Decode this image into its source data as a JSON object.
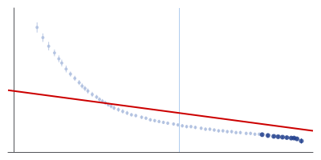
{
  "chart_data": {
    "type": "scatter",
    "xlim": [
      -0.02,
      1.03
    ],
    "ylim": [
      0.95,
      2.65
    ],
    "tick_labels": false,
    "grid": false,
    "vertical_line": {
      "x": 0.575,
      "color": "#b0ccee"
    },
    "series": [
      {
        "type": "scatter",
        "color": "#aabbdd",
        "marker": "circle",
        "x": [
          0.08,
          0.1,
          0.12,
          0.14,
          0.155,
          0.165,
          0.18,
          0.195,
          0.21,
          0.225,
          0.235,
          0.245,
          0.255,
          0.27,
          0.285,
          0.295,
          0.305,
          0.315,
          0.325,
          0.335,
          0.345,
          0.36,
          0.375,
          0.39,
          0.405,
          0.42,
          0.44,
          0.455,
          0.47,
          0.485,
          0.5,
          0.515,
          0.53,
          0.55,
          0.565,
          0.58,
          0.595,
          0.61,
          0.625,
          0.645,
          0.66,
          0.675,
          0.69,
          0.705,
          0.72,
          0.735,
          0.75,
          0.765,
          0.78,
          0.8,
          0.815,
          0.83,
          0.845
        ],
        "values": [
          2.42,
          2.3,
          2.2,
          2.12,
          2.05,
          2.0,
          1.93,
          1.87,
          1.82,
          1.77,
          1.73,
          1.7,
          1.67,
          1.63,
          1.6,
          1.57,
          1.55,
          1.53,
          1.51,
          1.49,
          1.47,
          1.45,
          1.43,
          1.41,
          1.39,
          1.38,
          1.36,
          1.35,
          1.33,
          1.32,
          1.31,
          1.3,
          1.29,
          1.28,
          1.27,
          1.26,
          1.25,
          1.25,
          1.24,
          1.23,
          1.22,
          1.22,
          1.21,
          1.2,
          1.2,
          1.19,
          1.19,
          1.18,
          1.18,
          1.17,
          1.17,
          1.16,
          1.16
        ],
        "yerr": [
          0.06,
          0.05,
          0.05,
          0.04,
          0.04,
          0.04,
          0.04,
          0.03,
          0.03,
          0.03,
          0.03,
          0.03,
          0.03,
          0.03,
          0.025,
          0.025,
          0.025,
          0.025,
          0.025,
          0.025,
          0.025,
          0.025,
          0.025,
          0.025,
          0.02,
          0.02,
          0.02,
          0.02,
          0.02,
          0.02,
          0.02,
          0.02,
          0.02,
          0.02,
          0.02,
          0.02,
          0.02,
          0.02,
          0.02,
          0.02,
          0.02,
          0.02,
          0.02,
          0.02,
          0.02,
          0.02,
          0.02,
          0.02,
          0.02,
          0.02,
          0.02,
          0.02,
          0.02
        ]
      },
      {
        "type": "scatter",
        "color": "#1a3a8a",
        "marker": "circle",
        "x": [
          0.855,
          0.875,
          0.895,
          0.91,
          0.925,
          0.94,
          0.955,
          0.965,
          0.975,
          0.99
        ],
        "values": [
          1.155,
          1.145,
          1.135,
          1.13,
          1.125,
          1.12,
          1.115,
          1.115,
          1.105,
          1.08
        ],
        "yerr": [
          0.02,
          0.02,
          0.02,
          0.02,
          0.02,
          0.02,
          0.02,
          0.02,
          0.02,
          0.03
        ]
      },
      {
        "type": "line",
        "color": "#cc0000",
        "x": [
          -0.02,
          1.03
        ],
        "values": [
          1.68,
          1.2
        ]
      }
    ]
  }
}
